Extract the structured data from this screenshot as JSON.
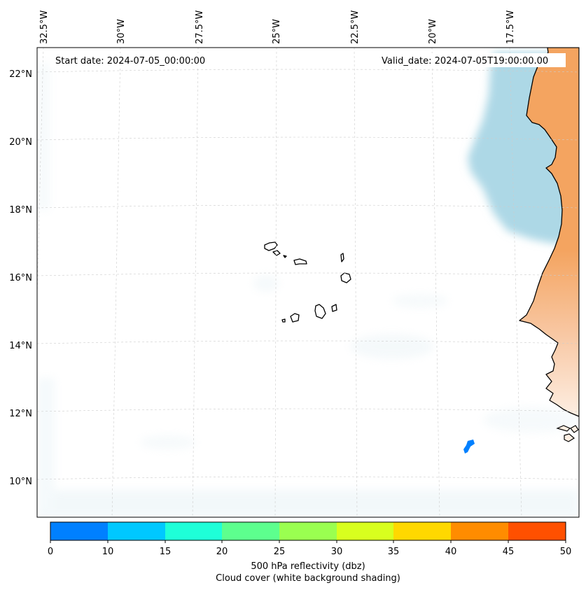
{
  "map": {
    "annotations": {
      "start_date": "Start date: 2024-07-05_00:00:00",
      "valid_date": "Valid_date: 2024-07-05T19:00:00.00"
    },
    "longitude_labels": [
      "32.5°W",
      "30°W",
      "27.5°W",
      "25°W",
      "22.5°W",
      "20°W",
      "17.5°W"
    ],
    "latitude_labels": [
      "22°N",
      "20°N",
      "18°N",
      "16°N",
      "14°N",
      "12°N",
      "10°N"
    ]
  },
  "colorbar": {
    "ticks": [
      "0",
      "10",
      "15",
      "20",
      "25",
      "30",
      "35",
      "40",
      "45",
      "50"
    ],
    "colors": [
      "#0080ff",
      "#00c8ff",
      "#1effd8",
      "#5dff8e",
      "#9aff50",
      "#d8ff1e",
      "#ffd800",
      "#ff8c00",
      "#ff5000"
    ],
    "title_line1": "500 hPa reflectivity (dbz)",
    "title_line2": "Cloud cover (white background shading)"
  },
  "palette": {
    "land": "#f4a460",
    "cloud": "#add8e6",
    "coast": "#000000",
    "grid": "#cccccc"
  }
}
